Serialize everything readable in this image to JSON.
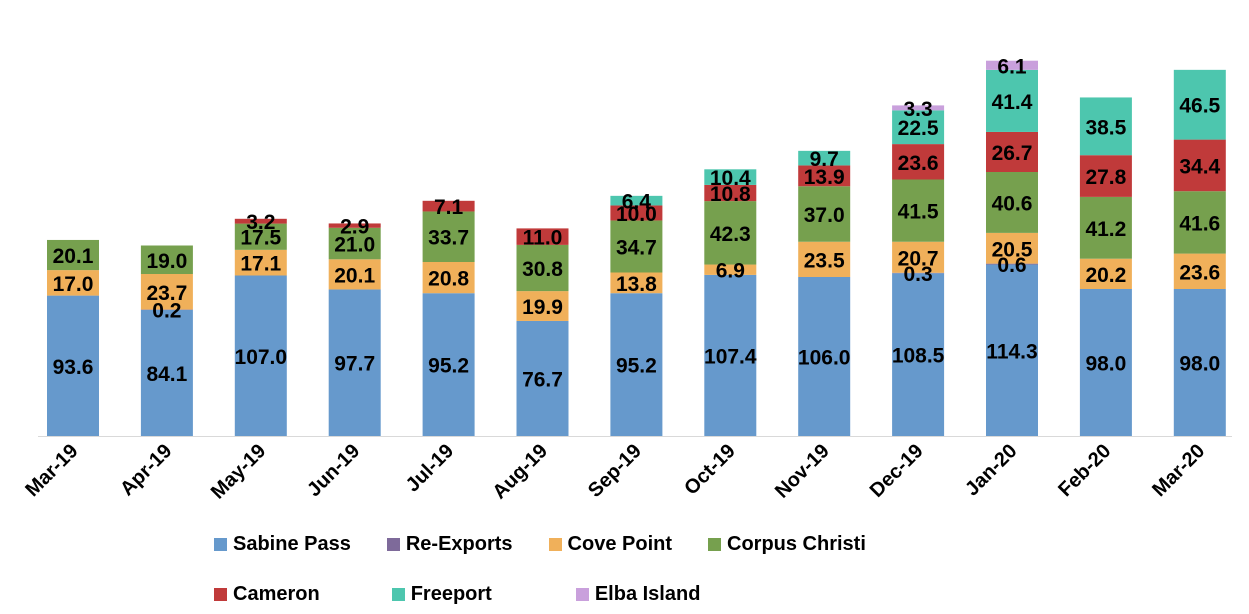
{
  "chart_data": {
    "type": "bar",
    "stacked": true,
    "categories": [
      "Mar-19",
      "Apr-19",
      "May-19",
      "Jun-19",
      "Jul-19",
      "Aug-19",
      "Sep-19",
      "Oct-19",
      "Nov-19",
      "Dec-19",
      "Jan-20",
      "Feb-20",
      "Mar-20"
    ],
    "series": [
      {
        "name": "Sabine Pass",
        "color": "#6699CC",
        "values": [
          93.6,
          84.1,
          107.0,
          97.7,
          95.2,
          76.7,
          95.2,
          107.4,
          106.0,
          108.5,
          114.3,
          98.0,
          98.0
        ]
      },
      {
        "name": "Re-Exports",
        "color": "#7E6A9A",
        "values": [
          null,
          0.2,
          null,
          null,
          null,
          null,
          null,
          null,
          null,
          0.3,
          0.6,
          null,
          null
        ]
      },
      {
        "name": "Cove Point",
        "color": "#F0B05A",
        "values": [
          17.0,
          23.7,
          17.1,
          20.1,
          20.8,
          19.9,
          13.8,
          6.9,
          23.5,
          20.7,
          20.5,
          20.2,
          23.6
        ]
      },
      {
        "name": "Corpus Christi",
        "color": "#76A04E",
        "values": [
          20.1,
          19.0,
          17.5,
          21.0,
          33.7,
          30.8,
          34.7,
          42.3,
          37.0,
          41.5,
          40.6,
          41.2,
          41.6
        ]
      },
      {
        "name": "Cameron",
        "color": "#C03A3A",
        "values": [
          null,
          null,
          3.2,
          2.9,
          7.1,
          11.0,
          10.0,
          10.8,
          13.9,
          23.6,
          26.7,
          27.8,
          34.4
        ]
      },
      {
        "name": "Freeport",
        "color": "#4DC6AE",
        "values": [
          null,
          null,
          null,
          null,
          null,
          null,
          6.4,
          10.4,
          9.7,
          22.5,
          41.4,
          38.5,
          46.5
        ]
      },
      {
        "name": "Elba Island",
        "color": "#C9A0DC",
        "values": [
          null,
          null,
          null,
          null,
          null,
          null,
          null,
          null,
          null,
          3.3,
          6.1,
          null,
          null
        ]
      }
    ],
    "legend_position": "bottom",
    "grid": false
  }
}
